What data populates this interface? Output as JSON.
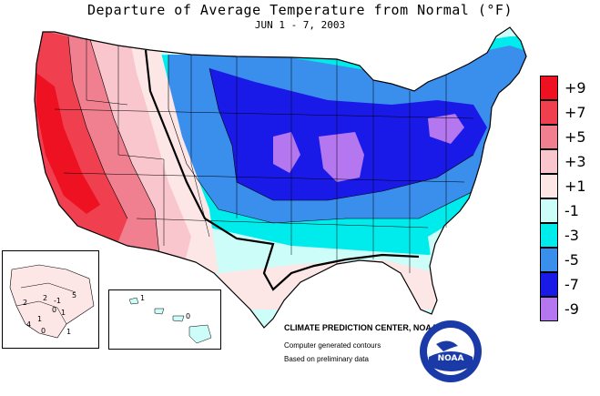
{
  "header": {
    "title": "Departure of Average Temperature from Normal (°F)",
    "subtitle": "JUN 1 - 7, 2003"
  },
  "legend": {
    "entries": [
      {
        "label": "+9",
        "color": "#ee1122"
      },
      {
        "label": "+7",
        "color": "#f04050"
      },
      {
        "label": "+5",
        "color": "#f08090"
      },
      {
        "label": "+3",
        "color": "#f8c6cc"
      },
      {
        "label": "+1",
        "color": "#fde6e6"
      },
      {
        "label": "-1",
        "color": "#ccfdf8"
      },
      {
        "label": "-3",
        "color": "#00ecec"
      },
      {
        "label": "-5",
        "color": "#3a8eec"
      },
      {
        "label": "-7",
        "color": "#1a1ae8"
      },
      {
        "label": "-9",
        "color": "#b477f0"
      }
    ]
  },
  "credits": {
    "center": "CLIMATE PREDICTION CENTER, NOAA",
    "generated": "Computer generated contours",
    "preliminary": "Based on preliminary data"
  },
  "alaska_inset": {
    "labels": [
      "2",
      "5",
      "2",
      "0",
      "1",
      "4",
      "1",
      "1",
      "0",
      "-1"
    ]
  },
  "hawaii_inset": {
    "labels": [
      "1",
      "0"
    ]
  },
  "logo": {
    "text": "NOAA"
  },
  "colors": {
    "border": "#000000",
    "state_lines": "#000000"
  }
}
